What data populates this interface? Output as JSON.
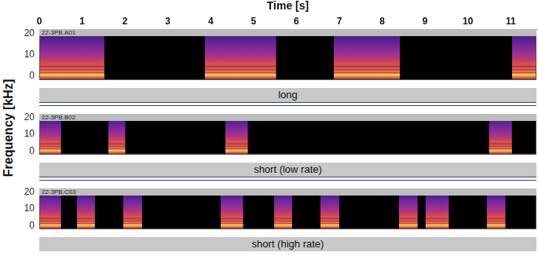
{
  "chart_data": [
    {
      "type": "spectrogram",
      "title": "22-3PB.A01",
      "caption": "long",
      "x_label": "Time [s]",
      "y_label": "Frequency [kHz]",
      "xlim": [
        0,
        11.6
      ],
      "xticks": [
        0,
        1,
        2,
        3,
        4,
        5,
        6,
        7,
        8,
        9,
        10,
        11
      ],
      "ylim": [
        -2,
        22
      ],
      "yticks": [
        0,
        10,
        20
      ],
      "grid": false,
      "segments": [
        {
          "start": 0,
          "end": 1.52
        },
        {
          "start": 3.86,
          "end": 5.53
        },
        {
          "start": 6.87,
          "end": 8.42
        },
        {
          "start": 11.03,
          "end": 11.6
        }
      ]
    },
    {
      "type": "spectrogram",
      "title": "22-3PB.B02",
      "caption": "short (low rate)",
      "xlim": [
        0,
        11.6
      ],
      "ylim": [
        -2,
        22
      ],
      "yticks": [
        0,
        10,
        20
      ],
      "grid": false,
      "tick_labels": "y",
      "segments": [
        {
          "start": 0,
          "end": 0.51
        },
        {
          "start": 1.61,
          "end": 2.01
        },
        {
          "start": 4.34,
          "end": 4.87
        },
        {
          "start": 10.49,
          "end": 11.03
        }
      ]
    },
    {
      "type": "spectrogram",
      "title": "22-3PB.C03",
      "caption": "short (high rate)",
      "xlim": [
        0,
        11.6
      ],
      "ylim": [
        -2,
        22
      ],
      "yticks": [
        0,
        10,
        20
      ],
      "grid": false,
      "tick_labels": "y",
      "segments": [
        {
          "start": 0,
          "end": 0.51
        },
        {
          "start": 0.88,
          "end": 1.3
        },
        {
          "start": 1.96,
          "end": 2.4
        },
        {
          "start": 4.23,
          "end": 4.76
        },
        {
          "start": 5.48,
          "end": 5.9
        },
        {
          "start": 6.56,
          "end": 7.0
        },
        {
          "start": 8.39,
          "end": 8.83
        },
        {
          "start": 9.01,
          "end": 9.56
        },
        {
          "start": 10.44,
          "end": 10.88
        }
      ]
    }
  ]
}
